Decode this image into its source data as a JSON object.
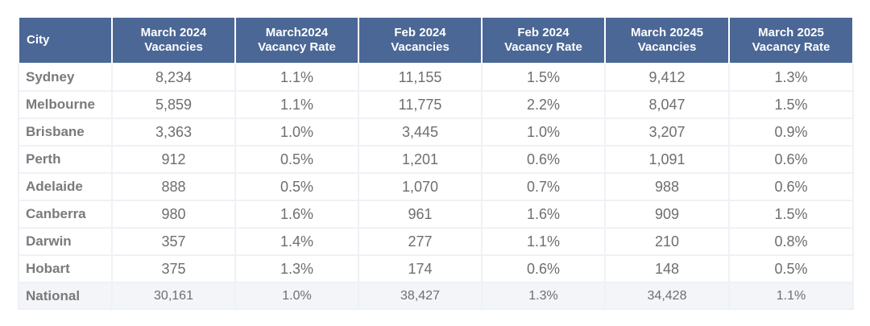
{
  "headers": [
    {
      "line1": "City",
      "line2": ""
    },
    {
      "line1": "March 2024",
      "line2": "Vacancies"
    },
    {
      "line1": "March2024",
      "line2": "Vacancy Rate"
    },
    {
      "line1": "Feb 2024",
      "line2": "Vacancies"
    },
    {
      "line1": "Feb 2024",
      "line2": "Vacancy Rate"
    },
    {
      "line1": "March 20245",
      "line2": "Vacancies"
    },
    {
      "line1": "March 2025",
      "line2": "Vacancy Rate"
    }
  ],
  "rows": [
    [
      "Sydney",
      "8,234",
      "1.1%",
      "11,155",
      "1.5%",
      "9,412",
      "1.3%"
    ],
    [
      "Melbourne",
      "5,859",
      "1.1%",
      "11,775",
      "2.2%",
      "8,047",
      "1.5%"
    ],
    [
      "Brisbane",
      "3,363",
      "1.0%",
      "3,445",
      "1.0%",
      "3,207",
      "0.9%"
    ],
    [
      "Perth",
      "912",
      "0.5%",
      "1,201",
      "0.6%",
      "1,091",
      "0.6%"
    ],
    [
      "Adelaide",
      "888",
      "0.5%",
      "1,070",
      "0.7%",
      "988",
      "0.6%"
    ],
    [
      "Canberra",
      "980",
      "1.6%",
      "961",
      "1.6%",
      "909",
      "1.5%"
    ],
    [
      "Darwin",
      "357",
      "1.4%",
      "277",
      "1.1%",
      "210",
      "0.8%"
    ],
    [
      "Hobart",
      "375",
      "1.3%",
      "174",
      "0.6%",
      "148",
      "0.5%"
    ]
  ],
  "national": [
    "National",
    "30,161",
    "1.0%",
    "38,427",
    "1.3%",
    "34,428",
    "1.1%"
  ],
  "colors": {
    "header_bg": "#4b6795",
    "header_text": "#ffffff",
    "cell_text": "#6e6e6e",
    "grid_line": "#eef1f6",
    "national_bg": "#f3f5f8"
  }
}
